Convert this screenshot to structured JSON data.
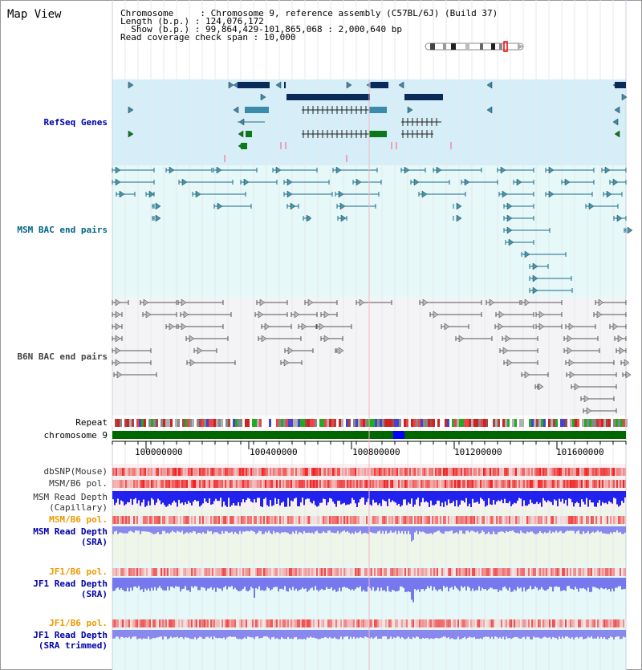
{
  "page": {
    "title": "Map View",
    "header": {
      "line1": "Chromosome     : Chromosome 9, reference assembly (C57BL/6J) (Build 37)",
      "line2": "Length (b.p.) : 124,076,172",
      "line3": "  Show (b.p.) : 99,864,429-101,865,068 : 2,000,640 bp",
      "line4": "Read coverage check span : 10,000"
    }
  },
  "tracks": {
    "refseq": {
      "label": "RefSeq Genes",
      "color": "#0000aa"
    },
    "msm_bac": {
      "label": "MSM BAC end pairs",
      "color": "#006688"
    },
    "b6n_bac": {
      "label": "B6N BAC end pairs",
      "color": "#444444"
    },
    "repeat": {
      "label": "Repeat",
      "color": "#000000"
    },
    "chromosome": {
      "label": "chromosome 9",
      "color": "#000000"
    },
    "dbsnp": {
      "label": "dbSNP(Mouse)",
      "color": "#333333"
    },
    "msm_b6_pol_cap": {
      "label": "MSM/B6 pol.",
      "color": "#333333"
    },
    "msm_depth_cap_1": {
      "label": "MSM Read Depth",
      "color": "#333333"
    },
    "msm_depth_cap_2": {
      "label": "(Capillary)",
      "color": "#333333"
    },
    "msm_b6_pol_sra": {
      "label": "MSM/B6 pol.",
      "color": "#ee9900"
    },
    "msm_depth_sra_1": {
      "label": "MSM Read Depth",
      "color": "#0000aa"
    },
    "msm_depth_sra_2": {
      "label": "(SRA)",
      "color": "#0000aa"
    },
    "jf1_b6_pol": {
      "label": "JF1/B6 pol.",
      "color": "#ee9900"
    },
    "jf1_depth_1": {
      "label": "JF1 Read Depth",
      "color": "#0000aa"
    },
    "jf1_depth_2": {
      "label": "(SRA)",
      "color": "#0000aa"
    },
    "jf1_b6_pol_t": {
      "label": "JF1/B6 pol.",
      "color": "#ee9900"
    },
    "jf1_depth_t_1": {
      "label": "JF1 Read Depth",
      "color": "#0000aa"
    },
    "jf1_depth_t_2": {
      "label": "(SRA trimmed)",
      "color": "#0000aa"
    }
  },
  "axis": {
    "ticks": [
      "100000000",
      "100400000",
      "100800000",
      "101200000",
      "101600000"
    ]
  }
}
